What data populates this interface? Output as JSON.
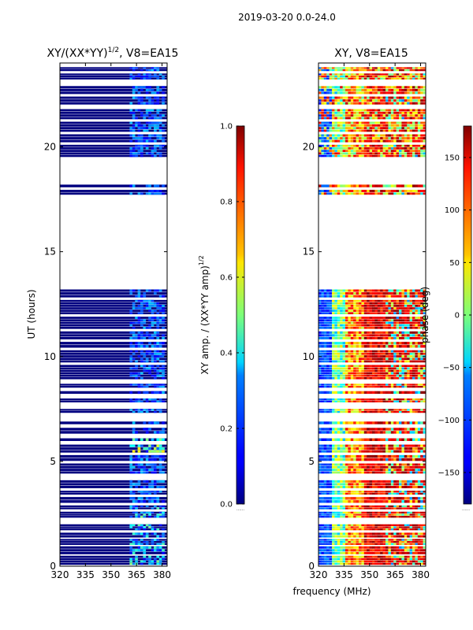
{
  "suptitle": "2019-03-20 0.0-24.0",
  "chart_data": [
    {
      "type": "heatmap",
      "title": "XY/(XX*YY)",
      "title_exp": "1/2",
      "title_suffix": ", V8=EA15",
      "ylabel": "UT (hours)",
      "xlim": [
        320,
        383
      ],
      "ylim": [
        0,
        24
      ],
      "xticks": [
        320,
        335,
        350,
        365,
        380
      ],
      "yticks": [
        0,
        5,
        10,
        15,
        20
      ],
      "value_range": [
        0.0,
        1.0
      ],
      "colorbar_label": "XY amp. / (XX*YY amp)",
      "colorbar_label_exp": "1/2",
      "colorbar_ticks": [
        "0.0",
        "0.2",
        "0.4",
        "0.6",
        "0.8",
        "1.0"
      ],
      "colorbar_values": [
        0.0,
        0.2,
        0.4,
        0.6,
        0.8,
        1.0
      ],
      "colormap": "jet"
    },
    {
      "type": "heatmap",
      "title": "XY, V8=EA15",
      "xlabel": "frequency (MHz)",
      "xlim": [
        320,
        383
      ],
      "ylim": [
        0,
        24
      ],
      "xticks": [
        320,
        335,
        350,
        365,
        380
      ],
      "yticks": [
        0,
        5,
        10,
        15,
        20
      ],
      "value_range": [
        -180,
        180
      ],
      "colorbar_label": "phase (deg)",
      "colorbar_ticks": [
        "150",
        "100",
        "50",
        "0",
        "−50",
        "−100",
        "−150"
      ],
      "colorbar_values": [
        150,
        100,
        50,
        0,
        -50,
        -100,
        -150
      ],
      "colormap": "jet"
    }
  ]
}
